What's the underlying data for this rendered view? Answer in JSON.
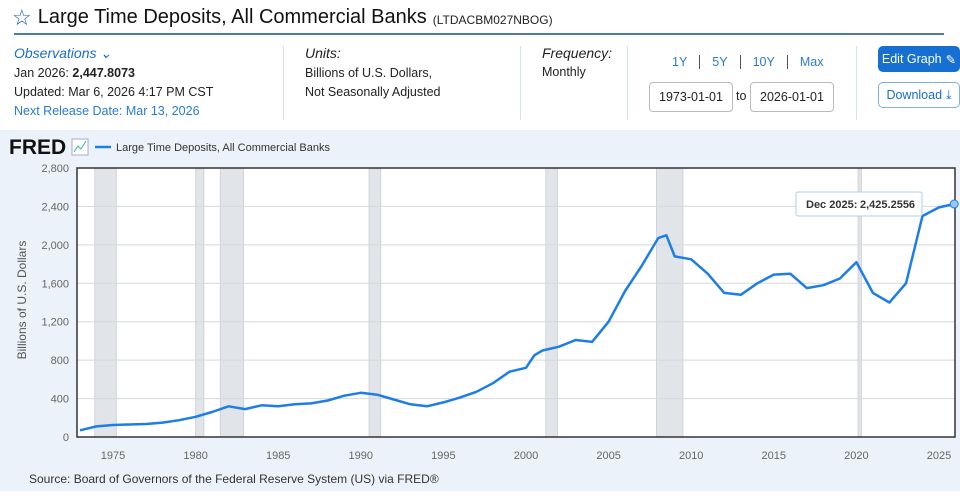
{
  "header": {
    "title": "Large Time Deposits, All Commercial Banks",
    "series_id": "(LTDACBM027NBOG)"
  },
  "observations": {
    "label": "Observations",
    "latest_label": "Jan 2026:",
    "latest_value": "2,447.8073",
    "updated": "Updated: Mar 6, 2026 4:17 PM CST",
    "next_release": "Next Release Date: Mar 13, 2026"
  },
  "units": {
    "label": "Units:",
    "line1": "Billions of U.S. Dollars,",
    "line2": "Not Seasonally Adjusted"
  },
  "frequency": {
    "label": "Frequency:",
    "value": "Monthly"
  },
  "range_buttons": [
    "1Y",
    "5Y",
    "10Y",
    "Max"
  ],
  "date_range": {
    "start": "1973-01-01",
    "to": "to",
    "end": "2026-01-01"
  },
  "buttons": {
    "edit": "Edit Graph",
    "download": "Download"
  },
  "brand": "FRED",
  "source": "Source: Board of Governors of the Federal Reserve System (US) via FRED®",
  "tooltip": {
    "label": "Dec 2025:",
    "value": "2,425.2556"
  },
  "colors": {
    "line": "#1c7ee6",
    "recession": "#e1e5e9",
    "accent": "#1570d1"
  },
  "chart_data": {
    "type": "line",
    "title": "",
    "legend": "Large Time Deposits, All Commercial Banks",
    "ylabel": "Billions of U.S. Dollars",
    "xlabel": "",
    "ylim": [
      0,
      2800
    ],
    "xlim": [
      1973,
      2026
    ],
    "yticks": [
      0,
      400,
      800,
      1200,
      1600,
      2000,
      2400,
      2800
    ],
    "ytick_labels": [
      "0",
      "400",
      "800",
      "1,200",
      "1,600",
      "2,000",
      "2,400",
      "2,800"
    ],
    "xticks": [
      1975,
      1980,
      1985,
      1990,
      1995,
      2000,
      2005,
      2010,
      2015,
      2020,
      2025
    ],
    "recessions": [
      [
        1973.9,
        1975.2
      ],
      [
        1980.0,
        1980.5
      ],
      [
        1981.5,
        1982.9
      ],
      [
        1990.5,
        1991.2
      ],
      [
        2001.2,
        2001.9
      ],
      [
        2007.9,
        2009.5
      ],
      [
        2020.1,
        2020.3
      ]
    ],
    "x": [
      1973,
      1974,
      1975,
      1976,
      1977,
      1978,
      1979,
      1980,
      1981,
      1982,
      1983,
      1984,
      1985,
      1986,
      1987,
      1988,
      1989,
      1990,
      1991,
      1992,
      1993,
      1994,
      1995,
      1996,
      1997,
      1998,
      1999,
      2000,
      2000.5,
      2001,
      2002,
      2003,
      2004,
      2005,
      2006,
      2007,
      2008,
      2008.5,
      2009,
      2010,
      2011,
      2012,
      2013,
      2014,
      2015,
      2016,
      2017,
      2018,
      2019,
      2020,
      2021,
      2022,
      2023,
      2024,
      2025,
      2025.92,
      2026
    ],
    "values": [
      70,
      110,
      125,
      130,
      135,
      150,
      175,
      210,
      260,
      320,
      290,
      330,
      320,
      340,
      350,
      380,
      430,
      460,
      440,
      390,
      340,
      320,
      360,
      410,
      470,
      560,
      680,
      720,
      850,
      900,
      940,
      1010,
      990,
      1200,
      1520,
      1780,
      2070,
      2100,
      1880,
      1850,
      1700,
      1500,
      1480,
      1600,
      1690,
      1700,
      1550,
      1580,
      1650,
      1820,
      1500,
      1400,
      1600,
      2300,
      2390,
      2425,
      2448
    ]
  }
}
